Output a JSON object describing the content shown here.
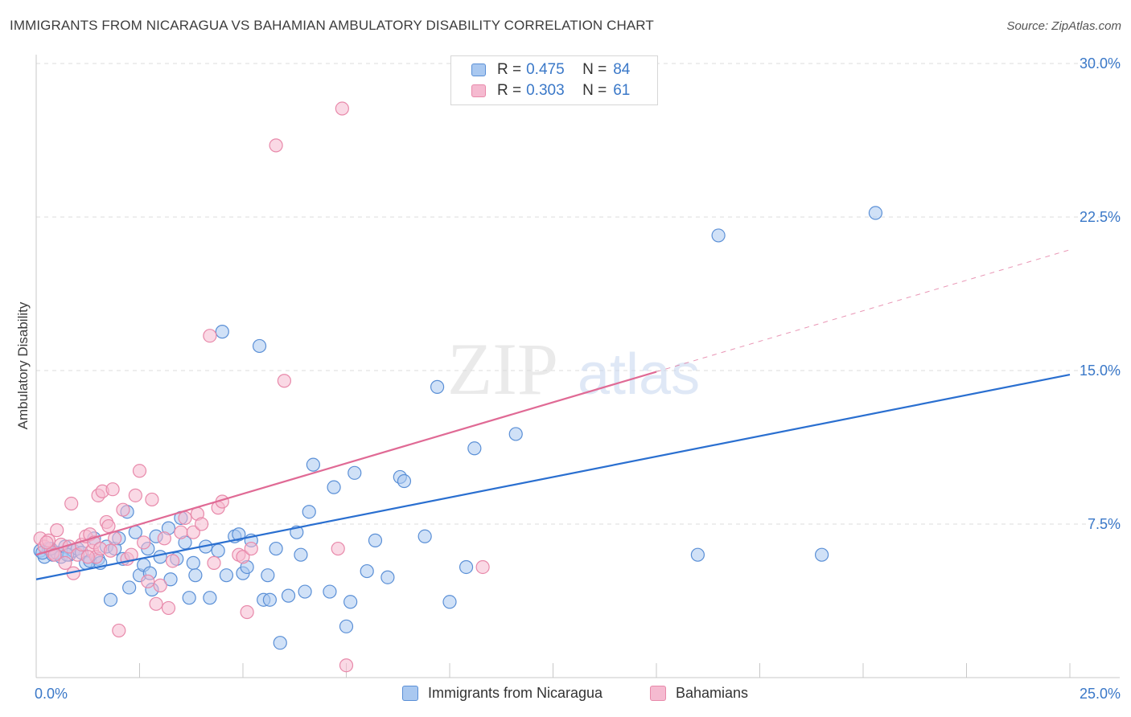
{
  "title": "IMMIGRANTS FROM NICARAGUA VS BAHAMIAN AMBULATORY DISABILITY CORRELATION CHART",
  "source": "Source: ZipAtlas.com",
  "watermark": {
    "zip": "ZIP",
    "atlas": "atlas"
  },
  "colors": {
    "blue_fill": "#a9c8f0",
    "blue_stroke": "#5a8fd6",
    "blue_line": "#2a6fd0",
    "pink_fill": "#f5bad0",
    "pink_stroke": "#e889aa",
    "pink_line": "#e06a95",
    "tick_text": "#3a78c8",
    "grid": "#dddddd"
  },
  "legend": {
    "rows": [
      {
        "r_label": "R =",
        "r_value": "0.475",
        "n_label": "N =",
        "n_value": "84"
      },
      {
        "r_label": "R =",
        "r_value": "0.303",
        "n_label": "N =",
        "n_value": "61"
      }
    ]
  },
  "chart_data": {
    "type": "scatter",
    "ylabel": "Ambulatory Disability",
    "xlim": [
      0,
      25
    ],
    "ylim": [
      0,
      30
    ],
    "x_tick_labels": [
      "0.0%",
      "25.0%"
    ],
    "y_ticks": [
      7.5,
      15.0,
      22.5,
      30.0
    ],
    "y_tick_labels": [
      "7.5%",
      "15.0%",
      "22.5%",
      "30.0%"
    ],
    "grid": "horizontal dashed",
    "legend_position": "top-center",
    "series": [
      {
        "name": "Immigrants from Nicaragua",
        "color": "blue",
        "trend": {
          "x0": 0,
          "y0": 4.8,
          "x1": 25,
          "y1": 14.8,
          "dashed_from": null
        },
        "points": [
          [
            0.1,
            6.2
          ],
          [
            0.2,
            5.9
          ],
          [
            0.3,
            6.3
          ],
          [
            0.4,
            6.0
          ],
          [
            0.5,
            6.1
          ],
          [
            0.6,
            5.9
          ],
          [
            0.7,
            6.4
          ],
          [
            0.8,
            6.0
          ],
          [
            0.9,
            6.2
          ],
          [
            1.0,
            6.3
          ],
          [
            1.1,
            6.1
          ],
          [
            1.2,
            5.6
          ],
          [
            1.3,
            5.7
          ],
          [
            1.4,
            6.8
          ],
          [
            1.5,
            5.8
          ],
          [
            1.55,
            5.6
          ],
          [
            1.7,
            6.4
          ],
          [
            1.8,
            3.8
          ],
          [
            1.9,
            6.3
          ],
          [
            2.0,
            6.8
          ],
          [
            2.1,
            5.8
          ],
          [
            2.2,
            8.1
          ],
          [
            2.25,
            4.4
          ],
          [
            2.4,
            7.1
          ],
          [
            2.5,
            5.0
          ],
          [
            2.6,
            5.5
          ],
          [
            2.7,
            6.3
          ],
          [
            2.75,
            5.1
          ],
          [
            2.8,
            4.3
          ],
          [
            2.9,
            6.9
          ],
          [
            3.0,
            5.9
          ],
          [
            3.2,
            7.3
          ],
          [
            3.25,
            4.8
          ],
          [
            3.4,
            5.8
          ],
          [
            3.5,
            7.8
          ],
          [
            3.6,
            6.6
          ],
          [
            3.7,
            3.9
          ],
          [
            3.8,
            5.6
          ],
          [
            3.85,
            5.0
          ],
          [
            4.1,
            6.4
          ],
          [
            4.2,
            3.9
          ],
          [
            4.4,
            6.2
          ],
          [
            4.5,
            16.9
          ],
          [
            4.6,
            5.0
          ],
          [
            4.8,
            6.9
          ],
          [
            4.9,
            7.0
          ],
          [
            5.0,
            5.1
          ],
          [
            5.1,
            5.4
          ],
          [
            5.2,
            6.7
          ],
          [
            5.4,
            16.2
          ],
          [
            5.5,
            3.8
          ],
          [
            5.6,
            5.0
          ],
          [
            5.65,
            3.8
          ],
          [
            5.8,
            6.3
          ],
          [
            5.9,
            1.7
          ],
          [
            6.1,
            4.0
          ],
          [
            6.3,
            7.1
          ],
          [
            6.4,
            6.0
          ],
          [
            6.5,
            4.2
          ],
          [
            6.6,
            8.1
          ],
          [
            6.7,
            10.4
          ],
          [
            7.1,
            4.2
          ],
          [
            7.2,
            9.3
          ],
          [
            7.5,
            2.5
          ],
          [
            7.6,
            3.7
          ],
          [
            7.7,
            10.0
          ],
          [
            8.0,
            5.2
          ],
          [
            8.2,
            6.7
          ],
          [
            8.5,
            4.9
          ],
          [
            8.8,
            9.8
          ],
          [
            8.9,
            9.6
          ],
          [
            9.4,
            6.9
          ],
          [
            9.7,
            14.2
          ],
          [
            10.0,
            3.7
          ],
          [
            10.4,
            5.4
          ],
          [
            10.6,
            11.2
          ],
          [
            11.6,
            11.9
          ],
          [
            16.0,
            6.0
          ],
          [
            16.5,
            21.6
          ],
          [
            19.0,
            6.0
          ],
          [
            20.3,
            22.7
          ],
          [
            0.15,
            6.1
          ],
          [
            0.35,
            6.3
          ],
          [
            0.75,
            6.0
          ]
        ]
      },
      {
        "name": "Bahamians",
        "color": "pink",
        "trend": {
          "x0": 0,
          "y0": 6.0,
          "x1": 25,
          "y1": 20.9,
          "dashed_from": 15.0
        },
        "points": [
          [
            0.1,
            6.8
          ],
          [
            0.2,
            6.4
          ],
          [
            0.3,
            6.7
          ],
          [
            0.4,
            6.1
          ],
          [
            0.5,
            7.2
          ],
          [
            0.6,
            6.5
          ],
          [
            0.7,
            5.6
          ],
          [
            0.8,
            6.4
          ],
          [
            0.85,
            8.5
          ],
          [
            0.9,
            5.1
          ],
          [
            1.0,
            6.0
          ],
          [
            1.1,
            6.5
          ],
          [
            1.2,
            6.9
          ],
          [
            1.3,
            7.0
          ],
          [
            1.35,
            6.2
          ],
          [
            1.4,
            6.6
          ],
          [
            1.45,
            5.9
          ],
          [
            1.5,
            8.9
          ],
          [
            1.55,
            6.3
          ],
          [
            1.6,
            9.1
          ],
          [
            1.7,
            7.6
          ],
          [
            1.75,
            7.4
          ],
          [
            1.8,
            6.2
          ],
          [
            1.85,
            9.2
          ],
          [
            1.9,
            6.8
          ],
          [
            2.0,
            2.3
          ],
          [
            2.1,
            8.2
          ],
          [
            2.2,
            5.8
          ],
          [
            2.3,
            6.0
          ],
          [
            2.4,
            8.9
          ],
          [
            2.5,
            10.1
          ],
          [
            2.6,
            6.6
          ],
          [
            2.7,
            4.7
          ],
          [
            2.8,
            8.7
          ],
          [
            2.9,
            3.6
          ],
          [
            3.0,
            4.5
          ],
          [
            3.1,
            6.8
          ],
          [
            3.2,
            3.4
          ],
          [
            3.3,
            5.7
          ],
          [
            3.5,
            7.1
          ],
          [
            3.6,
            7.8
          ],
          [
            3.8,
            7.1
          ],
          [
            3.9,
            8.0
          ],
          [
            4.0,
            7.5
          ],
          [
            4.2,
            16.7
          ],
          [
            4.3,
            5.6
          ],
          [
            4.4,
            8.3
          ],
          [
            4.5,
            8.6
          ],
          [
            4.9,
            6.0
          ],
          [
            5.0,
            5.9
          ],
          [
            5.1,
            3.2
          ],
          [
            5.2,
            6.3
          ],
          [
            5.8,
            26.0
          ],
          [
            6.0,
            14.5
          ],
          [
            7.3,
            6.3
          ],
          [
            7.4,
            27.8
          ],
          [
            7.5,
            0.6
          ],
          [
            10.8,
            5.4
          ],
          [
            0.25,
            6.6
          ],
          [
            0.45,
            6.0
          ],
          [
            1.25,
            5.9
          ]
        ]
      }
    ]
  }
}
